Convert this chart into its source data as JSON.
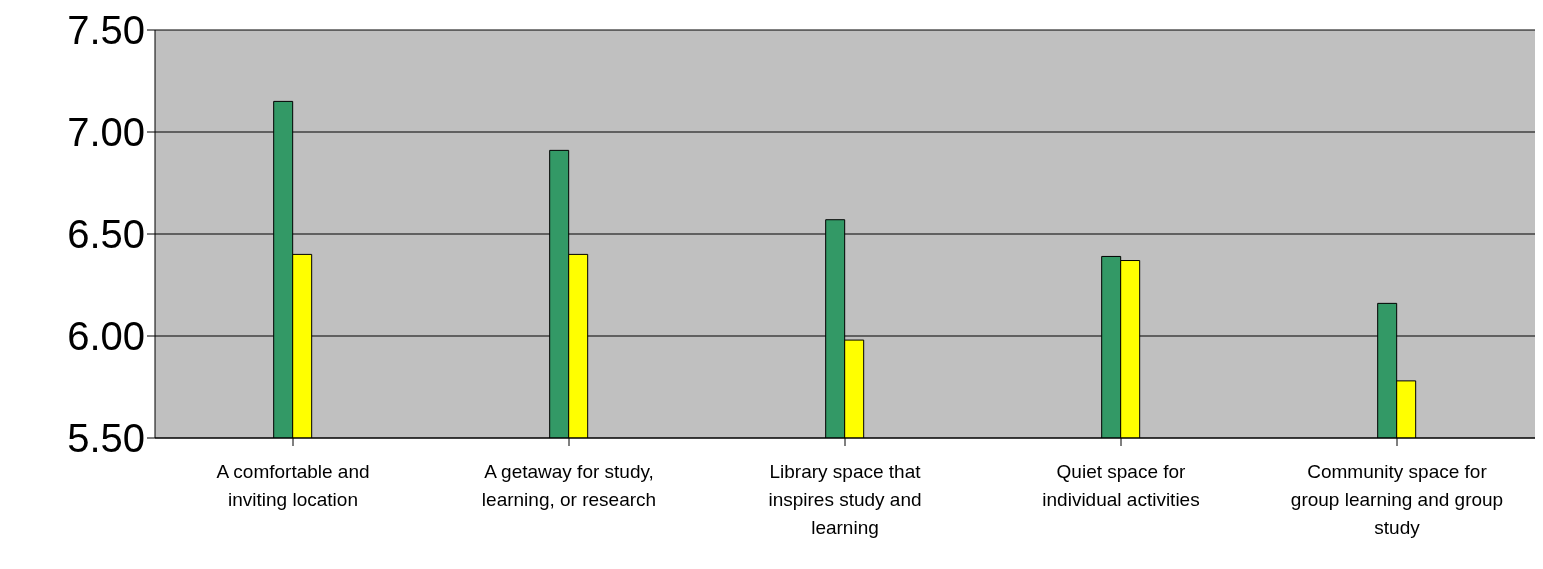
{
  "chart_data": {
    "type": "bar",
    "categories": [
      "A comfortable and inviting location",
      "A getaway for study, learning, or research",
      "Library space that inspires study and learning",
      "Quiet space for individual activities",
      "Community space for group learning and group study"
    ],
    "series": [
      {
        "color": "#339966",
        "values": [
          7.15,
          6.91,
          6.57,
          6.39,
          6.16
        ]
      },
      {
        "color": "#ffff00",
        "values": [
          6.4,
          6.4,
          5.98,
          6.37,
          5.78
        ]
      }
    ],
    "ylim": [
      5.5,
      7.5
    ],
    "yticks": [
      {
        "value": 5.5,
        "label": "5.50"
      },
      {
        "value": 6,
        "label": "6.00"
      },
      {
        "value": 6.5,
        "label": "6.50"
      },
      {
        "value": 7,
        "label": "7.00"
      },
      {
        "value": 7.5,
        "label": "7.50"
      }
    ],
    "grid": "y",
    "legend": false
  }
}
